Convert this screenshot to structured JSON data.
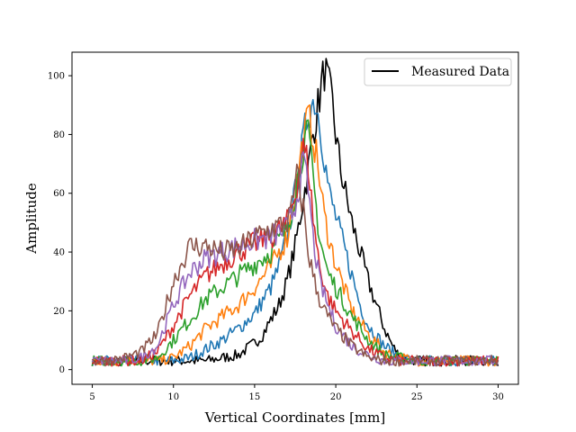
{
  "chart_data": {
    "type": "line",
    "title": "",
    "xlabel": "Vertical Coordinates [mm]",
    "ylabel": "Amplitude",
    "xlim": [
      3.75,
      31.25
    ],
    "ylim": [
      -5,
      108
    ],
    "xticks": [
      5,
      10,
      15,
      20,
      25,
      30
    ],
    "yticks": [
      0,
      20,
      40,
      60,
      80,
      100
    ],
    "grid": false,
    "legend": {
      "position": "top-right",
      "entries": [
        "Measured Data"
      ]
    },
    "series": [
      {
        "name": "Measured Data",
        "color": "#000000",
        "x": [
          5,
          6,
          7,
          8,
          9,
          10,
          11,
          12,
          13,
          14,
          15,
          15.5,
          16,
          16.5,
          17,
          17.5,
          18,
          18.3,
          18.6,
          19,
          19.3,
          19.5,
          19.8,
          20,
          20.3,
          20.6,
          21,
          21.5,
          22,
          22.5,
          23,
          23.5,
          24,
          25,
          26,
          27,
          28,
          29,
          30
        ],
        "values": [
          3,
          3,
          3,
          3,
          3,
          3,
          3,
          3,
          4,
          5,
          9,
          12,
          17,
          22,
          30,
          42,
          58,
          68,
          80,
          93,
          102,
          98,
          90,
          80,
          68,
          60,
          50,
          40,
          30,
          22,
          14,
          8,
          4,
          3,
          3,
          3,
          3,
          3,
          3
        ]
      },
      {
        "name": "",
        "color": "#1f77b4",
        "x": [
          5,
          6,
          7,
          8,
          9,
          10,
          11,
          12,
          13,
          14,
          15,
          16,
          16.5,
          17,
          17.5,
          18,
          18.3,
          18.7,
          19,
          19.3,
          19.6,
          20,
          20.5,
          21,
          21.5,
          22,
          23,
          24,
          25,
          26,
          27,
          28,
          29,
          30
        ],
        "values": [
          3,
          3,
          3,
          3,
          3,
          3,
          4,
          7,
          10,
          14,
          19,
          28,
          35,
          45,
          60,
          78,
          88,
          92,
          85,
          72,
          60,
          52,
          42,
          32,
          22,
          15,
          8,
          4,
          3,
          3,
          3,
          3,
          3,
          3
        ]
      },
      {
        "name": "",
        "color": "#ff7f0e",
        "x": [
          5,
          6,
          7,
          8,
          9,
          10,
          11,
          12,
          13,
          14,
          15,
          16,
          17,
          17.5,
          18,
          18.3,
          18.6,
          19,
          19.3,
          19.7,
          20,
          20.5,
          21,
          22,
          23,
          24,
          25,
          26,
          27,
          28,
          29,
          30
        ],
        "values": [
          3,
          3,
          3,
          3,
          3,
          4,
          8,
          14,
          18,
          22,
          28,
          35,
          45,
          60,
          78,
          86,
          80,
          65,
          52,
          42,
          36,
          28,
          20,
          12,
          6,
          4,
          3,
          3,
          3,
          3,
          3,
          3
        ]
      },
      {
        "name": "",
        "color": "#2ca02c",
        "x": [
          5,
          6,
          7,
          8,
          9,
          10,
          11,
          12,
          13,
          14,
          15,
          16,
          17,
          17.5,
          18,
          18.3,
          18.6,
          19,
          19.5,
          20,
          21,
          22,
          23,
          24,
          25,
          26,
          27,
          28,
          29,
          30
        ],
        "values": [
          3,
          3,
          3,
          3,
          4,
          10,
          17,
          24,
          28,
          32,
          36,
          40,
          48,
          60,
          76,
          80,
          65,
          45,
          33,
          28,
          18,
          10,
          5,
          4,
          3,
          3,
          3,
          3,
          3,
          3
        ]
      },
      {
        "name": "",
        "color": "#d62728",
        "x": [
          5,
          6,
          7,
          8,
          9,
          10,
          11,
          12,
          13,
          14,
          15,
          16,
          17,
          17.5,
          18,
          18.3,
          18.6,
          19,
          19.5,
          20,
          21,
          22,
          23,
          24,
          25,
          26,
          27,
          28,
          29,
          30
        ],
        "values": [
          3,
          3,
          3,
          3,
          6,
          15,
          25,
          32,
          36,
          40,
          43,
          45,
          50,
          60,
          75,
          70,
          52,
          35,
          25,
          20,
          13,
          7,
          4,
          3,
          3,
          3,
          3,
          3,
          3,
          3
        ]
      },
      {
        "name": "",
        "color": "#9467bd",
        "x": [
          5,
          6,
          7,
          8,
          9,
          10,
          11,
          12,
          13,
          14,
          15,
          16,
          17,
          17.5,
          18,
          18.3,
          18.6,
          19,
          19.5,
          20,
          21,
          22,
          23,
          24,
          25,
          26,
          27,
          28,
          29,
          30
        ],
        "values": [
          3,
          3,
          3,
          4,
          8,
          22,
          33,
          38,
          40,
          42,
          44,
          45,
          48,
          56,
          70,
          62,
          45,
          30,
          22,
          15,
          8,
          5,
          3,
          3,
          3,
          3,
          3,
          3,
          3,
          3
        ]
      },
      {
        "name": "",
        "color": "#8c564b",
        "x": [
          5,
          6,
          7,
          8,
          9,
          10,
          11,
          12,
          13,
          14,
          15,
          16,
          17,
          17.3,
          17.6,
          18,
          18.3,
          18.7,
          19,
          19.5,
          20,
          21,
          22,
          23,
          24,
          25,
          26,
          27,
          28,
          29,
          30
        ],
        "values": [
          3,
          3,
          4,
          6,
          12,
          30,
          42,
          42,
          40,
          41,
          45,
          48,
          50,
          55,
          66,
          55,
          40,
          30,
          24,
          18,
          14,
          8,
          4,
          3,
          3,
          3,
          3,
          3,
          3,
          3,
          3
        ]
      }
    ]
  }
}
